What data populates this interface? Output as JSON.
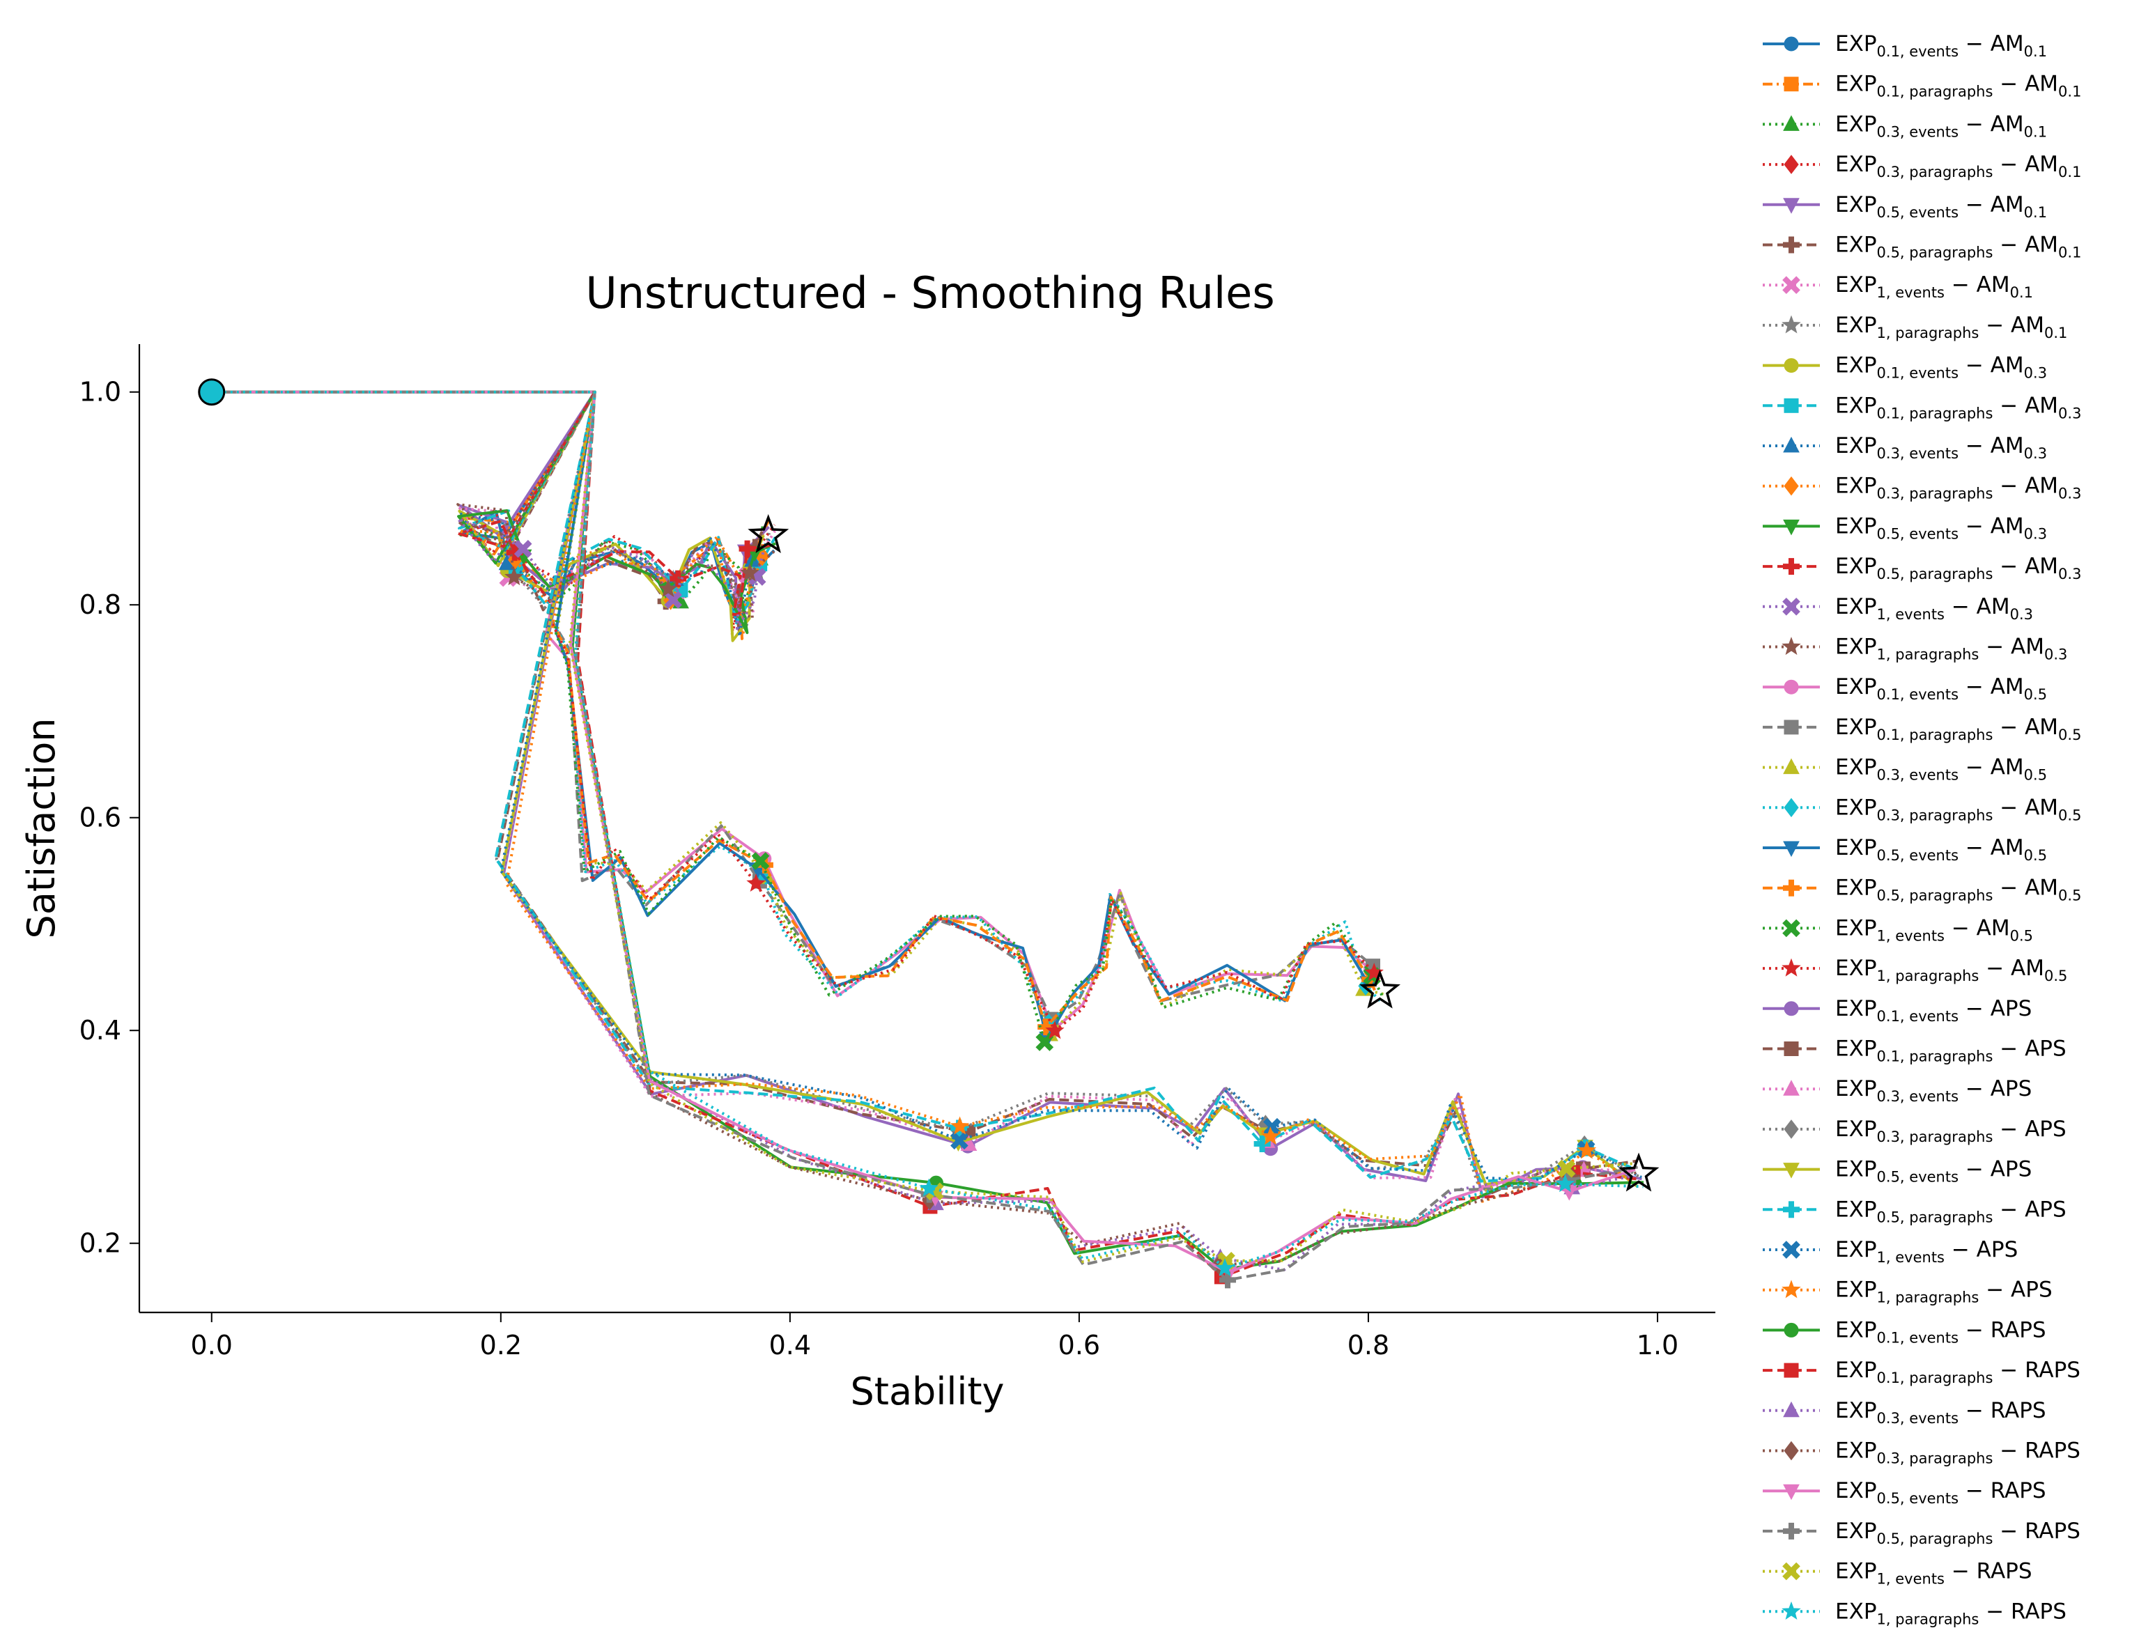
{
  "chart_data": {
    "type": "line",
    "title": "Unstructured - Smoothing Rules",
    "xlabel": "Stability",
    "ylabel": "Satisfaction",
    "xlim": [
      -0.05,
      1.04
    ],
    "ylim": [
      0.135,
      1.045
    ],
    "xticks": [
      0.0,
      0.2,
      0.4,
      0.6,
      0.8,
      1.0
    ],
    "xtick_labels": [
      "0.0",
      "0.2",
      "0.4",
      "0.6",
      "0.8",
      "1.0"
    ],
    "yticks": [
      0.2,
      0.4,
      0.6,
      0.8,
      1.0
    ],
    "ytick_labels": [
      "0.2",
      "0.4",
      "0.6",
      "0.8",
      "1.0"
    ],
    "grid": false,
    "legend_position": "outside-right",
    "start_point": {
      "x": 0.0,
      "y": 1.0
    },
    "end_markers": [
      {
        "x": 0.385,
        "y": 0.865
      },
      {
        "x": 0.808,
        "y": 0.437
      },
      {
        "x": 0.987,
        "y": 0.265
      }
    ],
    "colors": [
      "#1f77b4",
      "#ff7f0e",
      "#2ca02c",
      "#d62728",
      "#9467bd",
      "#8c564b",
      "#e377c2",
      "#7f7f7f",
      "#bcbd22",
      "#17becf"
    ],
    "series": [
      {
        "name": "EXP_{0.1, events} − AM_{0.1}",
        "color": "#1f77b4",
        "marker": "circle",
        "dash": "solid",
        "group": "A"
      },
      {
        "name": "EXP_{0.1, paragraphs} − AM_{0.1}",
        "color": "#ff7f0e",
        "marker": "square",
        "dash": "dashdot",
        "group": "A"
      },
      {
        "name": "EXP_{0.3, events} − AM_{0.1}",
        "color": "#2ca02c",
        "marker": "triangle-up",
        "dash": "dotted",
        "group": "A"
      },
      {
        "name": "EXP_{0.3, paragraphs} − AM_{0.1}",
        "color": "#d62728",
        "marker": "diamond",
        "dash": "dotted",
        "group": "A"
      },
      {
        "name": "EXP_{0.5, events} − AM_{0.1}",
        "color": "#9467bd",
        "marker": "triangle-down",
        "dash": "solid",
        "group": "A"
      },
      {
        "name": "EXP_{0.5, paragraphs} − AM_{0.1}",
        "color": "#8c564b",
        "marker": "plus",
        "dash": "dashed",
        "group": "A"
      },
      {
        "name": "EXP_{1, events} − AM_{0.1}",
        "color": "#e377c2",
        "marker": "x",
        "dash": "dotted",
        "group": "A"
      },
      {
        "name": "EXP_{1, paragraphs} − AM_{0.1}",
        "color": "#7f7f7f",
        "marker": "star",
        "dash": "dotted",
        "group": "A"
      },
      {
        "name": "EXP_{0.1, events} − AM_{0.3}",
        "color": "#bcbd22",
        "marker": "circle",
        "dash": "solid",
        "group": "A"
      },
      {
        "name": "EXP_{0.1, paragraphs} − AM_{0.3}",
        "color": "#17becf",
        "marker": "square",
        "dash": "dashed",
        "group": "A"
      },
      {
        "name": "EXP_{0.3, events} − AM_{0.3}",
        "color": "#1f77b4",
        "marker": "triangle-up",
        "dash": "dotted",
        "group": "A"
      },
      {
        "name": "EXP_{0.3, paragraphs} − AM_{0.3}",
        "color": "#ff7f0e",
        "marker": "diamond",
        "dash": "dotted",
        "group": "A"
      },
      {
        "name": "EXP_{0.5, events} − AM_{0.3}",
        "color": "#2ca02c",
        "marker": "triangle-down",
        "dash": "solid",
        "group": "A"
      },
      {
        "name": "EXP_{0.5, paragraphs} − AM_{0.3}",
        "color": "#d62728",
        "marker": "plus",
        "dash": "dashed",
        "group": "A"
      },
      {
        "name": "EXP_{1, events} − AM_{0.3}",
        "color": "#9467bd",
        "marker": "x",
        "dash": "dotted",
        "group": "A"
      },
      {
        "name": "EXP_{1, paragraphs} − AM_{0.3}",
        "color": "#8c564b",
        "marker": "star",
        "dash": "dotted",
        "group": "A"
      },
      {
        "name": "EXP_{0.1, events} − AM_{0.5}",
        "color": "#e377c2",
        "marker": "circle",
        "dash": "solid",
        "group": "B"
      },
      {
        "name": "EXP_{0.1, paragraphs} − AM_{0.5}",
        "color": "#7f7f7f",
        "marker": "square",
        "dash": "dashed",
        "group": "B"
      },
      {
        "name": "EXP_{0.3, events} − AM_{0.5}",
        "color": "#bcbd22",
        "marker": "triangle-up",
        "dash": "dotted",
        "group": "B"
      },
      {
        "name": "EXP_{0.3, paragraphs} − AM_{0.5}",
        "color": "#17becf",
        "marker": "diamond",
        "dash": "dotted",
        "group": "B"
      },
      {
        "name": "EXP_{0.5, events} − AM_{0.5}",
        "color": "#1f77b4",
        "marker": "triangle-down",
        "dash": "solid",
        "group": "B"
      },
      {
        "name": "EXP_{0.5, paragraphs} − AM_{0.5}",
        "color": "#ff7f0e",
        "marker": "plus",
        "dash": "dashed",
        "group": "B"
      },
      {
        "name": "EXP_{1, events} − AM_{0.5}",
        "color": "#2ca02c",
        "marker": "x",
        "dash": "dotted",
        "group": "B"
      },
      {
        "name": "EXP_{1, paragraphs} − AM_{0.5}",
        "color": "#d62728",
        "marker": "star",
        "dash": "dotted",
        "group": "B"
      },
      {
        "name": "EXP_{0.1, events} − APS",
        "color": "#9467bd",
        "marker": "circle",
        "dash": "solid",
        "group": "C"
      },
      {
        "name": "EXP_{0.1, paragraphs} − APS",
        "color": "#8c564b",
        "marker": "square",
        "dash": "dashed",
        "group": "C"
      },
      {
        "name": "EXP_{0.3, events} − APS",
        "color": "#e377c2",
        "marker": "triangle-up",
        "dash": "dotted",
        "group": "C"
      },
      {
        "name": "EXP_{0.3, paragraphs} − APS",
        "color": "#7f7f7f",
        "marker": "diamond",
        "dash": "dotted",
        "group": "C"
      },
      {
        "name": "EXP_{0.5, events} − APS",
        "color": "#bcbd22",
        "marker": "triangle-down",
        "dash": "solid",
        "group": "C"
      },
      {
        "name": "EXP_{0.5, paragraphs} − APS",
        "color": "#17becf",
        "marker": "plus",
        "dash": "dashed",
        "group": "C"
      },
      {
        "name": "EXP_{1, events} − APS",
        "color": "#1f77b4",
        "marker": "x",
        "dash": "dotted",
        "group": "C"
      },
      {
        "name": "EXP_{1, paragraphs} − APS",
        "color": "#ff7f0e",
        "marker": "star",
        "dash": "dotted",
        "group": "C"
      },
      {
        "name": "EXP_{0.1, events} − RAPS",
        "color": "#2ca02c",
        "marker": "circle",
        "dash": "solid",
        "group": "D"
      },
      {
        "name": "EXP_{0.1, paragraphs} − RAPS",
        "color": "#d62728",
        "marker": "square",
        "dash": "dashed",
        "group": "D"
      },
      {
        "name": "EXP_{0.3, events} − RAPS",
        "color": "#9467bd",
        "marker": "triangle-up",
        "dash": "dotted",
        "group": "D"
      },
      {
        "name": "EXP_{0.3, paragraphs} − RAPS",
        "color": "#8c564b",
        "marker": "diamond",
        "dash": "dotted",
        "group": "D"
      },
      {
        "name": "EXP_{0.5, events} − RAPS",
        "color": "#e377c2",
        "marker": "triangle-down",
        "dash": "solid",
        "group": "D"
      },
      {
        "name": "EXP_{0.5, paragraphs} − RAPS",
        "color": "#7f7f7f",
        "marker": "plus",
        "dash": "dashed",
        "group": "D"
      },
      {
        "name": "EXP_{1, events} − RAPS",
        "color": "#bcbd22",
        "marker": "x",
        "dash": "dotted",
        "group": "D"
      },
      {
        "name": "EXP_{1, paragraphs} − RAPS",
        "color": "#17becf",
        "marker": "star",
        "dash": "dotted",
        "group": "D"
      }
    ],
    "groups": {
      "A": [
        [
          0.0,
          1.0
        ],
        [
          0.2,
          1.0
        ],
        [
          0.265,
          1.0
        ],
        [
          0.2,
          0.85
        ],
        [
          0.175,
          0.88
        ],
        [
          0.2,
          0.88
        ],
        [
          0.21,
          0.84
        ],
        [
          0.235,
          0.81
        ],
        [
          0.25,
          0.83
        ],
        [
          0.275,
          0.85
        ],
        [
          0.3,
          0.84
        ],
        [
          0.32,
          0.81
        ],
        [
          0.335,
          0.84
        ],
        [
          0.35,
          0.85
        ],
        [
          0.36,
          0.82
        ],
        [
          0.365,
          0.78
        ],
        [
          0.37,
          0.8
        ],
        [
          0.375,
          0.84
        ],
        [
          0.385,
          0.865
        ]
      ],
      "B": [
        [
          0.0,
          1.0
        ],
        [
          0.2,
          1.0
        ],
        [
          0.265,
          1.0
        ],
        [
          0.235,
          0.78
        ],
        [
          0.25,
          0.75
        ],
        [
          0.26,
          0.55
        ],
        [
          0.28,
          0.56
        ],
        [
          0.3,
          0.52
        ],
        [
          0.35,
          0.585
        ],
        [
          0.38,
          0.55
        ],
        [
          0.4,
          0.5
        ],
        [
          0.43,
          0.445
        ],
        [
          0.47,
          0.46
        ],
        [
          0.5,
          0.515
        ],
        [
          0.53,
          0.5
        ],
        [
          0.56,
          0.47
        ],
        [
          0.58,
          0.4
        ],
        [
          0.6,
          0.43
        ],
        [
          0.615,
          0.455
        ],
        [
          0.625,
          0.53
        ],
        [
          0.64,
          0.48
        ],
        [
          0.66,
          0.43
        ],
        [
          0.7,
          0.45
        ],
        [
          0.74,
          0.44
        ],
        [
          0.76,
          0.47
        ],
        [
          0.78,
          0.49
        ],
        [
          0.8,
          0.45
        ],
        [
          0.808,
          0.437
        ]
      ],
      "C": [
        [
          0.0,
          1.0
        ],
        [
          0.2,
          1.0
        ],
        [
          0.265,
          1.0
        ],
        [
          0.2,
          0.55
        ],
        [
          0.3,
          0.35
        ],
        [
          0.37,
          0.35
        ],
        [
          0.45,
          0.33
        ],
        [
          0.52,
          0.3
        ],
        [
          0.58,
          0.33
        ],
        [
          0.65,
          0.335
        ],
        [
          0.68,
          0.3
        ],
        [
          0.7,
          0.34
        ],
        [
          0.73,
          0.3
        ],
        [
          0.76,
          0.32
        ],
        [
          0.8,
          0.27
        ],
        [
          0.84,
          0.27
        ],
        [
          0.86,
          0.33
        ],
        [
          0.88,
          0.25
        ],
        [
          0.92,
          0.27
        ],
        [
          0.95,
          0.28
        ],
        [
          0.987,
          0.265
        ]
      ],
      "D": [
        [
          0.0,
          1.0
        ],
        [
          0.2,
          1.0
        ],
        [
          0.265,
          1.0
        ],
        [
          0.25,
          0.76
        ],
        [
          0.3,
          0.35
        ],
        [
          0.4,
          0.28
        ],
        [
          0.5,
          0.245
        ],
        [
          0.58,
          0.24
        ],
        [
          0.6,
          0.19
        ],
        [
          0.67,
          0.21
        ],
        [
          0.7,
          0.175
        ],
        [
          0.74,
          0.185
        ],
        [
          0.78,
          0.22
        ],
        [
          0.83,
          0.22
        ],
        [
          0.86,
          0.24
        ],
        [
          0.9,
          0.255
        ],
        [
          0.94,
          0.26
        ],
        [
          0.987,
          0.265
        ]
      ]
    }
  }
}
